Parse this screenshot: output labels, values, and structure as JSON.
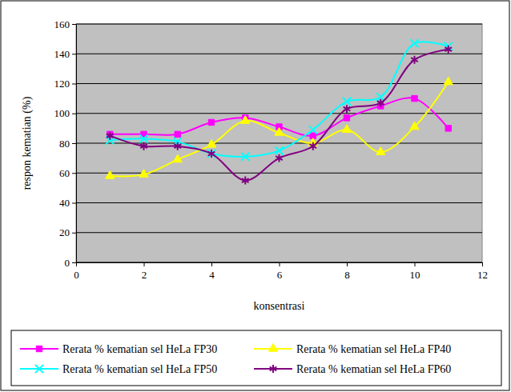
{
  "chart_data": {
    "type": "line",
    "x_label": "konsentrasi",
    "y_label": "respon kematian (%)",
    "x": [
      1,
      2,
      3,
      4,
      5,
      6,
      7,
      8,
      9,
      10,
      11
    ],
    "xlim": [
      0,
      12
    ],
    "xticks": [
      0,
      2,
      4,
      6,
      8,
      10,
      12
    ],
    "ylim": [
      0,
      160
    ],
    "yticks": [
      0,
      20,
      40,
      60,
      80,
      100,
      120,
      140,
      160
    ],
    "grid": true,
    "legend": "bottom",
    "line_style": "smooth",
    "series": [
      {
        "name": "Rerata % kematian sel HeLa FP30",
        "color": "#ff00ff",
        "marker": "square",
        "values": [
          86,
          86,
          86,
          94,
          97,
          91,
          85,
          97,
          105,
          110,
          90
        ]
      },
      {
        "name": "Rerata % kematian sel HeLa FP40",
        "color": "#ffff00",
        "marker": "triangle",
        "values": [
          58,
          59,
          69,
          79,
          95,
          87,
          80,
          89,
          74,
          91,
          121
        ]
      },
      {
        "name": "Rerata % kematian sel HeLa FP50",
        "color": "#00ffff",
        "marker": "x",
        "values": [
          82,
          83,
          81,
          73,
          71,
          75,
          89,
          108,
          111,
          147,
          145
        ]
      },
      {
        "name": "Rerata % kematian sel HeLa FP60",
        "color": "#800080",
        "marker": "asterisk",
        "values": [
          85,
          78,
          78,
          73,
          55,
          70,
          78,
          103,
          107,
          136,
          143
        ]
      }
    ]
  }
}
